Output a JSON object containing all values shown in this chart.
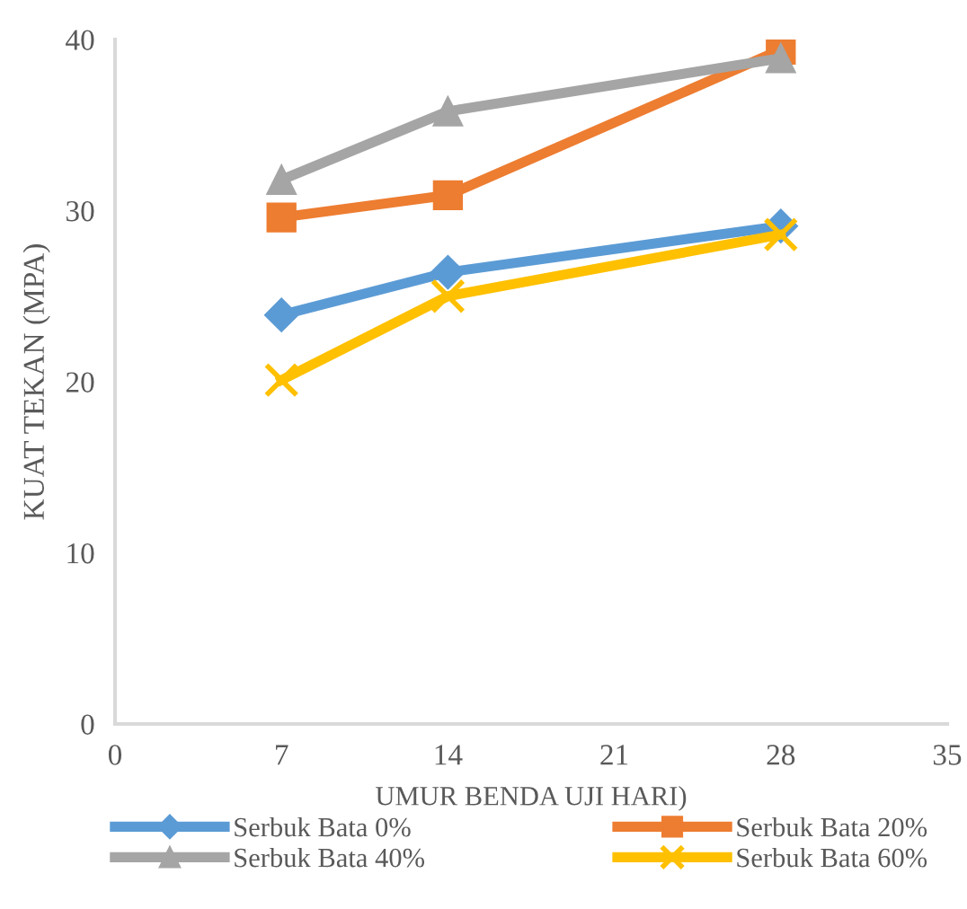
{
  "chart_data": {
    "type": "line",
    "xlabel": "UMUR BENDA UJI HARI)",
    "ylabel": "KUAT TEKAN (MPA)",
    "x": [
      7,
      14,
      28
    ],
    "series": [
      {
        "name": "Serbuk Bata 0%",
        "color": "#5b9bd5",
        "marker": "diamond",
        "values": [
          23.9,
          26.4,
          29.1
        ]
      },
      {
        "name": "Serbuk Bata 20%",
        "color": "#ed7d31",
        "marker": "square",
        "values": [
          29.6,
          30.9,
          39.4
        ]
      },
      {
        "name": "Serbuk Bata 40%",
        "color": "#a5a5a5",
        "marker": "triangle",
        "values": [
          31.8,
          35.8,
          38.9
        ]
      },
      {
        "name": "Serbuk Bata 60%",
        "color": "#ffc000",
        "marker": "cross",
        "values": [
          20.1,
          25.0,
          28.6
        ]
      }
    ],
    "xlim": [
      0,
      35
    ],
    "xticks": [
      0,
      7,
      14,
      21,
      28,
      35
    ],
    "ylim": [
      0,
      40
    ],
    "yticks": [
      0,
      10,
      20,
      30,
      40
    ],
    "grid": false,
    "legend": "bottom",
    "line_style": "solid"
  }
}
